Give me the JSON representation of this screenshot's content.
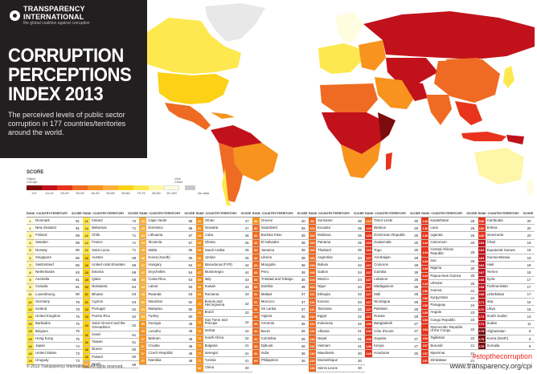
{
  "header": {
    "org_name": "TRANSPARENCY INTERNATIONAL",
    "org_tagline": "the global coalition against corruption",
    "title_line1": "CORRUPTION",
    "title_line2": "PERCEPTIONS",
    "title_line3": "INDEX 2013",
    "subtitle": "The perceived levels of public sector corruption in 177 countries/territories around the world."
  },
  "legend": {
    "title": "SCORE",
    "highly_corrupt": "Highly Corrupt",
    "very_clean": "Very Clean",
    "bins": [
      "0-9",
      "10-19",
      "20-29",
      "30-39",
      "40-49",
      "50-59",
      "60-69",
      "70-79",
      "80-89",
      "90-100"
    ],
    "colors": [
      "#7d0c0c",
      "#c1121b",
      "#e8341c",
      "#ef6b23",
      "#f7931e",
      "#fbb03b",
      "#fcd116",
      "#fde84f",
      "#fef6a8",
      "#fffde0"
    ],
    "no_data": "No data",
    "no_data_color": "#c8c8c8"
  },
  "table_header": {
    "rank": "RANK",
    "country": "COUNTRY/TERRITORY",
    "score": "SCORE"
  },
  "columns": [
    [
      [
        "1",
        "Denmark",
        "91"
      ],
      [
        "1",
        "New Zealand",
        "91"
      ],
      [
        "3",
        "Finland",
        "89"
      ],
      [
        "3",
        "Sweden",
        "89"
      ],
      [
        "5",
        "Norway",
        "86"
      ],
      [
        "5",
        "Singapore",
        "86"
      ],
      [
        "7",
        "Switzerland",
        "85"
      ],
      [
        "8",
        "Netherlands",
        "83"
      ],
      [
        "9",
        "Australia",
        "81"
      ],
      [
        "9",
        "Canada",
        "81"
      ],
      [
        "11",
        "Luxembourg",
        "80"
      ],
      [
        "12",
        "Germany",
        "78"
      ],
      [
        "12",
        "Iceland",
        "78"
      ],
      [
        "14",
        "United Kingdom",
        "76"
      ],
      [
        "15",
        "Barbados",
        "75"
      ],
      [
        "15",
        "Belgium",
        "75"
      ],
      [
        "15",
        "Hong Kong",
        "75"
      ],
      [
        "18",
        "Japan",
        "74"
      ],
      [
        "19",
        "United States",
        "73"
      ],
      [
        "19",
        "Uruguay",
        "73"
      ]
    ],
    [
      [
        "21",
        "Ireland",
        "72"
      ],
      [
        "22",
        "Bahamas",
        "71"
      ],
      [
        "22",
        "Chile",
        "71"
      ],
      [
        "22",
        "France",
        "71"
      ],
      [
        "22",
        "Saint Lucia",
        "71"
      ],
      [
        "26",
        "Austria",
        "69"
      ],
      [
        "26",
        "United Arab Emirates",
        "69"
      ],
      [
        "28",
        "Estonia",
        "68"
      ],
      [
        "28",
        "Qatar",
        "68"
      ],
      [
        "30",
        "Botswana",
        "64"
      ],
      [
        "31",
        "Bhutan",
        "63"
      ],
      [
        "31",
        "Cyprus",
        "63"
      ],
      [
        "33",
        "Portugal",
        "62"
      ],
      [
        "33",
        "Puerto Rico",
        "62"
      ],
      [
        "33",
        "Saint Vincent and the Grenadines",
        "62"
      ],
      [
        "36",
        "Israel",
        "61"
      ],
      [
        "36",
        "Taiwan",
        "61"
      ],
      [
        "38",
        "Brunei",
        "60"
      ],
      [
        "38",
        "Poland",
        "60"
      ],
      [
        "40",
        "Spain",
        "59"
      ]
    ],
    [
      [
        "41",
        "Cape Verde",
        "58"
      ],
      [
        "41",
        "Dominica",
        "58"
      ],
      [
        "43",
        "Lithuania",
        "57"
      ],
      [
        "43",
        "Slovenia",
        "57"
      ],
      [
        "45",
        "Malta",
        "56"
      ],
      [
        "46",
        "Korea (South)",
        "55"
      ],
      [
        "47",
        "Hungary",
        "54"
      ],
      [
        "47",
        "Seychelles",
        "54"
      ],
      [
        "49",
        "Costa Rica",
        "53"
      ],
      [
        "49",
        "Latvia",
        "53"
      ],
      [
        "49",
        "Rwanda",
        "53"
      ],
      [
        "52",
        "Mauritius",
        "52"
      ],
      [
        "53",
        "Malaysia",
        "50"
      ],
      [
        "53",
        "Turkey",
        "50"
      ],
      [
        "55",
        "Georgia",
        "49"
      ],
      [
        "55",
        "Lesotho",
        "49"
      ],
      [
        "57",
        "Bahrain",
        "48"
      ],
      [
        "57",
        "Croatia",
        "48"
      ],
      [
        "57",
        "Czech Republic",
        "48"
      ],
      [
        "57",
        "Namibia",
        "48"
      ]
    ],
    [
      [
        "61",
        "Oman",
        "47"
      ],
      [
        "61",
        "Slovakia",
        "47"
      ],
      [
        "63",
        "Cuba",
        "46"
      ],
      [
        "63",
        "Ghana",
        "46"
      ],
      [
        "63",
        "Saudi Arabia",
        "46"
      ],
      [
        "66",
        "Jordan",
        "45"
      ],
      [
        "67",
        "Macedonia (FYR)",
        "44"
      ],
      [
        "67",
        "Montenegro",
        "44"
      ],
      [
        "69",
        "Italy",
        "43"
      ],
      [
        "69",
        "Kuwait",
        "43"
      ],
      [
        "69",
        "Romania",
        "43"
      ],
      [
        "72",
        "Bosnia and Herzegovina",
        "42"
      ],
      [
        "72",
        "Brazil",
        "42"
      ],
      [
        "72",
        "Sao Tome and Principe",
        "42"
      ],
      [
        "72",
        "Serbia",
        "42"
      ],
      [
        "72",
        "South Africa",
        "42"
      ],
      [
        "77",
        "Bulgaria",
        "41"
      ],
      [
        "77",
        "Senegal",
        "41"
      ],
      [
        "77",
        "Tunisia",
        "41"
      ],
      [
        "80",
        "China",
        "40"
      ]
    ],
    [
      [
        "80",
        "Greece",
        "40"
      ],
      [
        "82",
        "Swaziland",
        "39"
      ],
      [
        "83",
        "Burkina Faso",
        "38"
      ],
      [
        "83",
        "El Salvador",
        "38"
      ],
      [
        "83",
        "Jamaica",
        "38"
      ],
      [
        "83",
        "Liberia",
        "38"
      ],
      [
        "83",
        "Mongolia",
        "38"
      ],
      [
        "83",
        "Peru",
        "38"
      ],
      [
        "83",
        "Trinidad and Tobago",
        "38"
      ],
      [
        "83",
        "Zambia",
        "38"
      ],
      [
        "91",
        "Malawi",
        "37"
      ],
      [
        "91",
        "Morocco",
        "37"
      ],
      [
        "91",
        "Sri Lanka",
        "37"
      ],
      [
        "94",
        "Algeria",
        "36"
      ],
      [
        "94",
        "Armenia",
        "36"
      ],
      [
        "94",
        "Benin",
        "36"
      ],
      [
        "94",
        "Colombia",
        "36"
      ],
      [
        "94",
        "Djibouti",
        "36"
      ],
      [
        "94",
        "India",
        "36"
      ],
      [
        "94",
        "Philippines",
        "36"
      ]
    ],
    [
      [
        "94",
        "Suriname",
        "36"
      ],
      [
        "102",
        "Ecuador",
        "35"
      ],
      [
        "102",
        "Moldova",
        "35"
      ],
      [
        "102",
        "Panama",
        "35"
      ],
      [
        "102",
        "Thailand",
        "35"
      ],
      [
        "106",
        "Argentina",
        "34"
      ],
      [
        "106",
        "Bolivia",
        "34"
      ],
      [
        "106",
        "Gabon",
        "34"
      ],
      [
        "106",
        "Mexico",
        "34"
      ],
      [
        "106",
        "Niger",
        "34"
      ],
      [
        "111",
        "Ethiopia",
        "33"
      ],
      [
        "111",
        "Kosovo",
        "33"
      ],
      [
        "111",
        "Tanzania",
        "33"
      ],
      [
        "114",
        "Egypt",
        "32"
      ],
      [
        "114",
        "Indonesia",
        "32"
      ],
      [
        "116",
        "Albania",
        "31"
      ],
      [
        "116",
        "Nepal",
        "31"
      ],
      [
        "116",
        "Vietnam",
        "31"
      ],
      [
        "119",
        "Mauritania",
        "30"
      ],
      [
        "119",
        "Mozambique",
        "30"
      ],
      [
        "119",
        "Sierra Leone",
        "30"
      ]
    ],
    [
      [
        "119",
        "Timor-Leste",
        "30"
      ],
      [
        "123",
        "Belarus",
        "29"
      ],
      [
        "123",
        "Dominican Republic",
        "29"
      ],
      [
        "123",
        "Guatemala",
        "29"
      ],
      [
        "123",
        "Togo",
        "29"
      ],
      [
        "127",
        "Azerbaijan",
        "28"
      ],
      [
        "127",
        "Comoros",
        "28"
      ],
      [
        "127",
        "Gambia",
        "28"
      ],
      [
        "127",
        "Lebanon",
        "28"
      ],
      [
        "127",
        "Madagascar",
        "28"
      ],
      [
        "127",
        "Mali",
        "28"
      ],
      [
        "127",
        "Nicaragua",
        "28"
      ],
      [
        "127",
        "Pakistan",
        "28"
      ],
      [
        "127",
        "Russia",
        "28"
      ],
      [
        "136",
        "Bangladesh",
        "27"
      ],
      [
        "136",
        "Côte d'Ivoire",
        "27"
      ],
      [
        "136",
        "Guyana",
        "27"
      ],
      [
        "136",
        "Kenya",
        "27"
      ],
      [
        "140",
        "Honduras",
        "26"
      ]
    ],
    [
      [
        "140",
        "Kazakhstan",
        "26"
      ],
      [
        "140",
        "Laos",
        "26"
      ],
      [
        "140",
        "Uganda",
        "26"
      ],
      [
        "144",
        "Cameroon",
        "25"
      ],
      [
        "144",
        "Central African Republic",
        "25"
      ],
      [
        "144",
        "Iran",
        "25"
      ],
      [
        "144",
        "Nigeria",
        "25"
      ],
      [
        "144",
        "Papua New Guinea",
        "25"
      ],
      [
        "144",
        "Ukraine",
        "25"
      ],
      [
        "150",
        "Guinea",
        "24"
      ],
      [
        "150",
        "Kyrgyzstan",
        "24"
      ],
      [
        "150",
        "Paraguay",
        "24"
      ],
      [
        "153",
        "Angola",
        "23"
      ],
      [
        "154",
        "Congo Republic",
        "22"
      ],
      [
        "154",
        "Democratic Republic of the Congo",
        "22"
      ],
      [
        "154",
        "Tajikistan",
        "22"
      ],
      [
        "157",
        "Burundi",
        "21"
      ],
      [
        "157",
        "Myanmar",
        "21"
      ],
      [
        "157",
        "Zimbabwe",
        "21"
      ]
    ],
    [
      [
        "160",
        "Cambodia",
        "20"
      ],
      [
        "160",
        "Eritrea",
        "20"
      ],
      [
        "160",
        "Venezuela",
        "20"
      ],
      [
        "163",
        "Chad",
        "19"
      ],
      [
        "163",
        "Equatorial Guinea",
        "19"
      ],
      [
        "163",
        "Guinea-Bissau",
        "19"
      ],
      [
        "163",
        "Haiti",
        "19"
      ],
      [
        "167",
        "Yemen",
        "18"
      ],
      [
        "168",
        "Syria",
        "17"
      ],
      [
        "168",
        "Turkmenistan",
        "17"
      ],
      [
        "168",
        "Uzbekistan",
        "17"
      ],
      [
        "171",
        "Iraq",
        "16"
      ],
      [
        "172",
        "Libya",
        "15"
      ],
      [
        "173",
        "South Sudan",
        "14"
      ],
      [
        "174",
        "Sudan",
        "11"
      ],
      [
        "175",
        "Afghanistan",
        "8"
      ],
      [
        "175",
        "Korea (North)",
        "8"
      ],
      [
        "175",
        "Somalia",
        "8"
      ]
    ]
  ],
  "footer": {
    "copyright": "© 2013 Transparency International. All rights reserved.",
    "hashtag": "#stopthecorruption",
    "website": "www.transparency.org/cpi"
  }
}
